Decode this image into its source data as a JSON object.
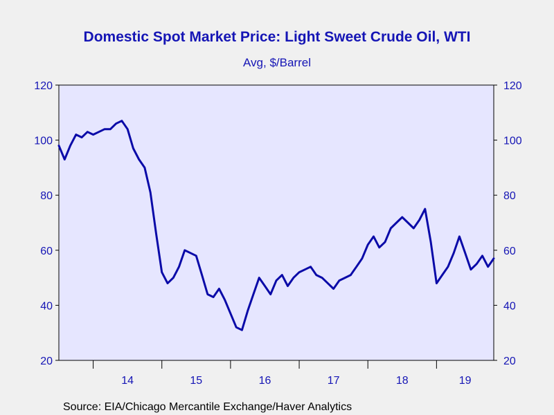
{
  "chart_data": {
    "type": "line",
    "title": "Domestic Spot Market Price: Light Sweet Crude Oil, WTI",
    "subtitle": "Avg, $/Barrel",
    "source": "Source:  EIA/Chicago Mercantile Exchange/Haver Analytics",
    "ylim": [
      20,
      120
    ],
    "yticks": [
      "20",
      "40",
      "60",
      "80",
      "100",
      "120"
    ],
    "x_range": [
      "2013-07",
      "2019-11"
    ],
    "x_categories": [
      "14",
      "15",
      "16",
      "17",
      "18",
      "19"
    ],
    "grid": false,
    "line_color": "#0a0aa8",
    "series": [
      {
        "x": [
          "2013-07",
          "2013-08",
          "2013-09",
          "2013-10",
          "2013-11",
          "2013-12",
          "2014-01",
          "2014-02",
          "2014-03",
          "2014-04",
          "2014-05",
          "2014-06",
          "2014-07",
          "2014-08",
          "2014-09",
          "2014-10",
          "2014-11",
          "2014-12",
          "2015-01",
          "2015-02",
          "2015-03",
          "2015-04",
          "2015-05",
          "2015-06",
          "2015-07",
          "2015-08",
          "2015-09",
          "2015-10",
          "2015-11",
          "2015-12",
          "2016-01",
          "2016-02",
          "2016-03",
          "2016-04",
          "2016-05",
          "2016-06",
          "2016-07",
          "2016-08",
          "2016-09",
          "2016-10",
          "2016-11",
          "2016-12",
          "2017-01",
          "2017-02",
          "2017-03",
          "2017-04",
          "2017-05",
          "2017-06",
          "2017-07",
          "2017-08",
          "2017-09",
          "2017-10",
          "2017-11",
          "2017-12",
          "2018-01",
          "2018-02",
          "2018-03",
          "2018-04",
          "2018-05",
          "2018-06",
          "2018-07",
          "2018-08",
          "2018-09",
          "2018-10",
          "2018-11",
          "2018-12",
          "2019-01",
          "2019-02",
          "2019-03",
          "2019-04",
          "2019-05",
          "2019-06",
          "2019-07",
          "2019-08",
          "2019-09",
          "2019-10",
          "2019-11"
        ],
        "values": [
          98,
          93,
          98,
          102,
          101,
          103,
          102,
          103,
          104,
          104,
          106,
          107,
          104,
          97,
          93,
          90,
          81,
          66,
          52,
          48,
          50,
          54,
          60,
          59,
          58,
          51,
          44,
          43,
          46,
          42,
          37,
          32,
          31,
          38,
          44,
          50,
          47,
          44,
          49,
          51,
          47,
          50,
          52,
          53,
          54,
          51,
          50,
          48,
          46,
          49,
          50,
          51,
          54,
          57,
          62,
          65,
          61,
          63,
          68,
          70,
          72,
          70,
          68,
          71,
          75,
          63,
          48,
          51,
          54,
          59,
          65,
          59,
          53,
          55,
          58,
          54,
          57
        ]
      }
    ]
  }
}
